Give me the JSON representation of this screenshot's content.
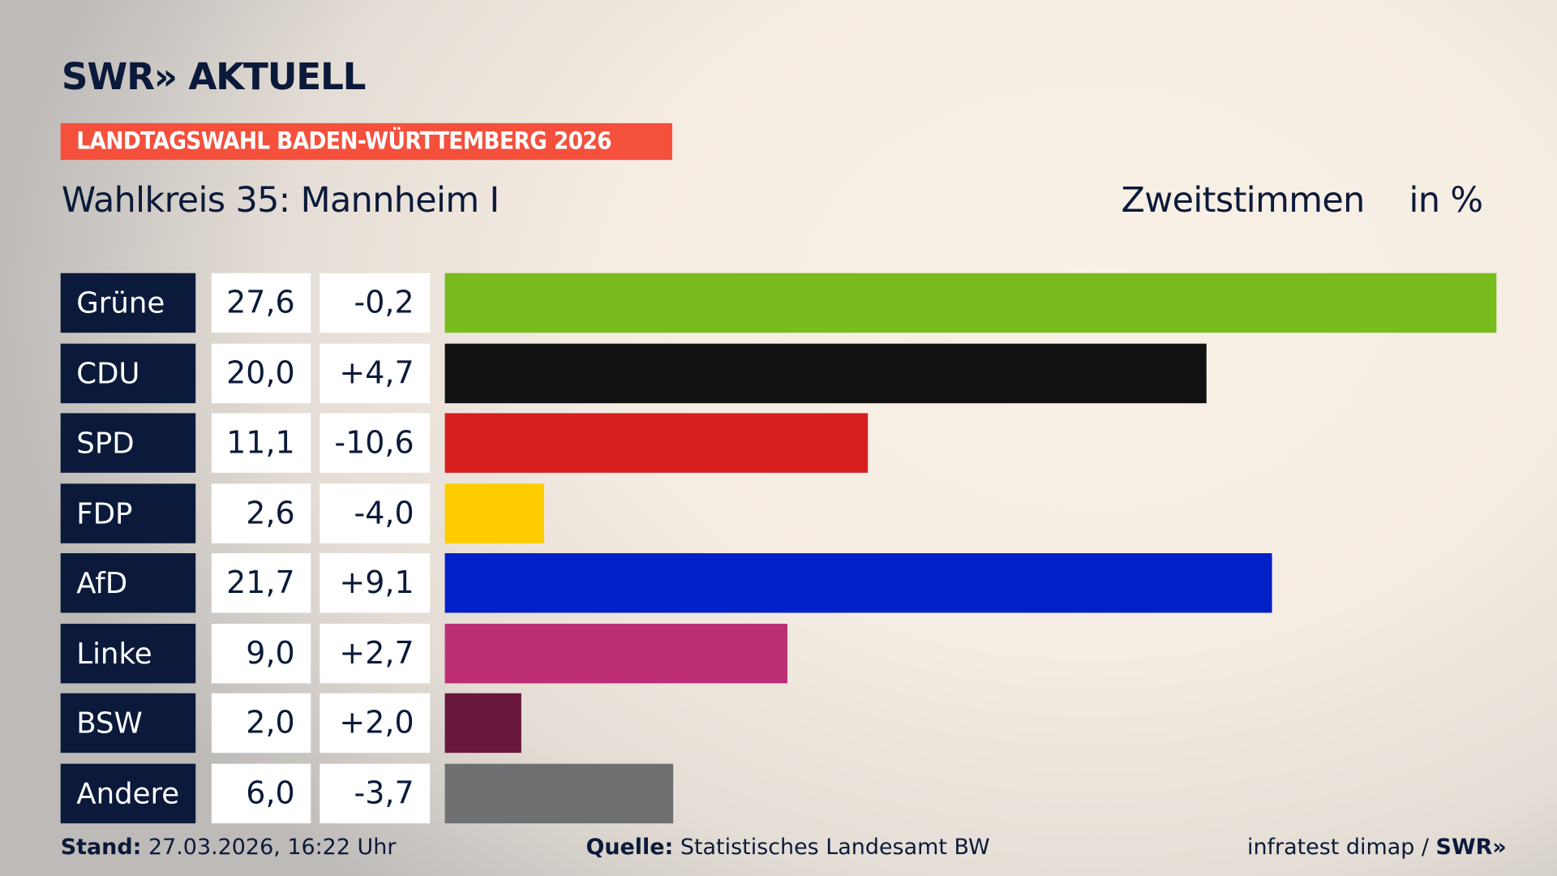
{
  "header": {
    "logo": "SWR» AKTUELL",
    "banner": "LANDTAGSWAHL BADEN-WÜRTTEMBERG 2026",
    "subtitle": "Wahlkreis 35: Mannheim I",
    "vote_type": "Zweitstimmen",
    "unit": "in %"
  },
  "chart_data": {
    "type": "bar",
    "orientation": "horizontal",
    "xlim": [
      0,
      27.6
    ],
    "categories": [
      "Grüne",
      "CDU",
      "SPD",
      "FDP",
      "AfD",
      "Linke",
      "BSW",
      "Andere"
    ],
    "values": [
      27.6,
      20.0,
      11.1,
      2.6,
      21.7,
      9.0,
      2.0,
      6.0
    ],
    "value_labels": [
      "27,6",
      "20,0",
      "11,1",
      "2,6",
      "21,7",
      "9,0",
      "2,0",
      "6,0"
    ],
    "diff_labels": [
      "-0,2",
      "+4,7",
      "-10,6",
      "-4,0",
      "+9,1",
      "+2,7",
      "+2,0",
      "-3,7"
    ],
    "colors": [
      "#78bc1e",
      "#121212",
      "#d71f1f",
      "#ffcc00",
      "#0021c8",
      "#bc2f74",
      "#6a173d",
      "#6f7072"
    ]
  },
  "footer": {
    "stand_label": "Stand:",
    "stand_value": "27.03.2026, 16:22 Uhr",
    "source_label": "Quelle:",
    "source_value": "Statistisches Landesamt BW",
    "credit": "infratest dimap /",
    "credit_logo": "SWR»"
  }
}
